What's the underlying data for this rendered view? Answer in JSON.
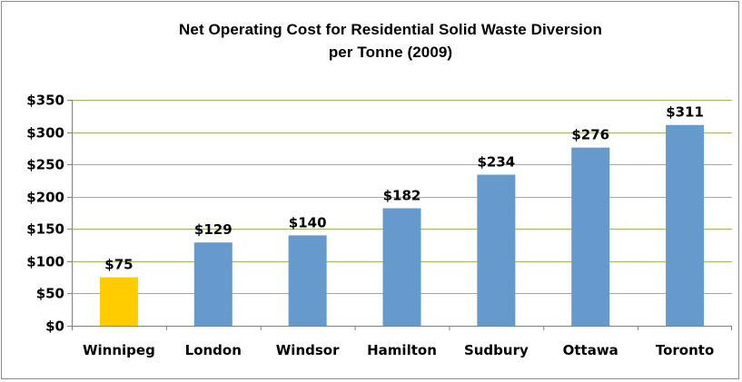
{
  "chart_data": {
    "type": "bar",
    "title_line1": "Net Operating Cost for Residential Solid Waste Diversion",
    "title_line2": "per Tonne (2009)",
    "xlabel": "",
    "ylabel": "",
    "categories": [
      "Winnipeg",
      "London",
      "Windsor",
      "Hamilton",
      "Sudbury",
      "Ottawa",
      "Toronto"
    ],
    "values": [
      75,
      129,
      140,
      182,
      234,
      276,
      311
    ],
    "data_labels": [
      "$75",
      "$129",
      "$140",
      "$182",
      "$234",
      "$276",
      "$311"
    ],
    "ylim": [
      0,
      350
    ],
    "yticks": [
      0,
      50,
      100,
      150,
      200,
      250,
      300,
      350
    ],
    "ytick_labels": [
      "$0",
      "$50",
      "$100",
      "$150",
      "$200",
      "$250",
      "$300",
      "$350"
    ],
    "grid": true,
    "legend": "none",
    "colors": {
      "highlight": "#FFCC00",
      "bar": "#6699CC",
      "grid": "#9BBB59",
      "axis": "#808080"
    },
    "highlight_index": 0
  }
}
